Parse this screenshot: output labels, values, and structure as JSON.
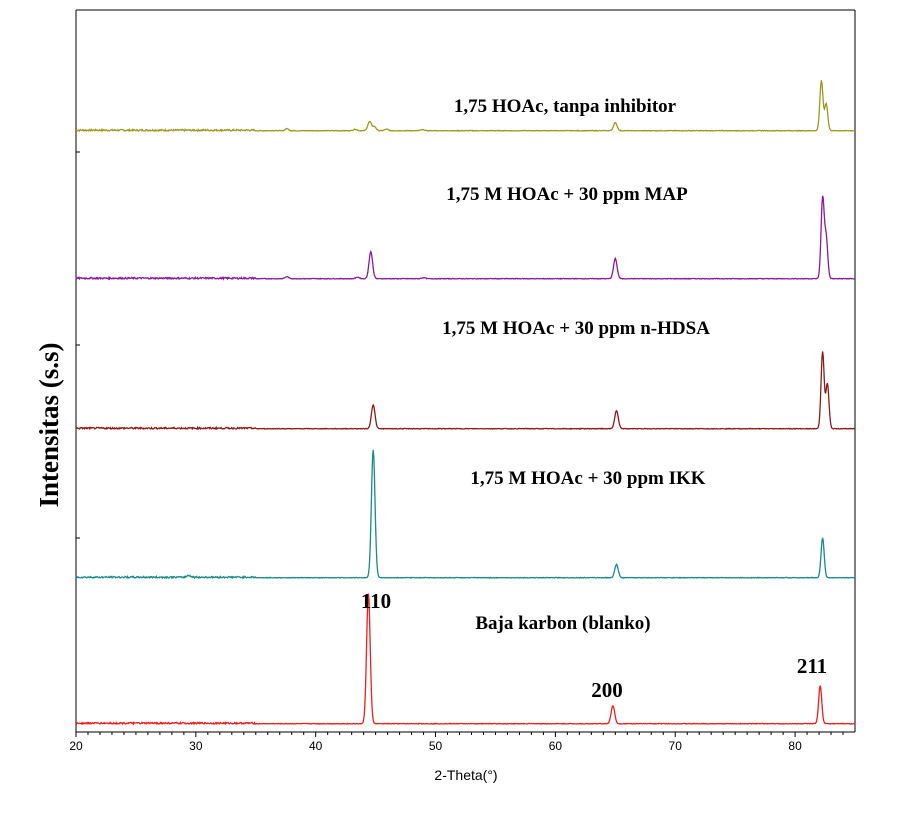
{
  "chart_data": {
    "type": "line",
    "xlabel": "2-Theta(°)",
    "ylabel": "Intensitas (s.s)",
    "xlim": [
      20,
      85
    ],
    "x_ticks": [
      20,
      30,
      40,
      50,
      60,
      70,
      80
    ],
    "x_tick_labels": [
      "20",
      "30",
      "40",
      "50",
      "60",
      "70",
      "80"
    ],
    "grid": false,
    "legend": "none",
    "series": [
      {
        "name": "1,75 HOAc, tanpa inhibitor",
        "color": "#9a9a1e",
        "peaks": [
          [
            37.6,
            2
          ],
          [
            43.3,
            1.5
          ],
          [
            44.5,
            9
          ],
          [
            44.9,
            4
          ],
          [
            45.9,
            1.5
          ],
          [
            48.9,
            1
          ],
          [
            65.0,
            8
          ],
          [
            82.2,
            50
          ],
          [
            82.6,
            27
          ]
        ]
      },
      {
        "name": "1,75 M HOAc  + 30 ppm MAP",
        "color": "#8a1a9e",
        "peaks": [
          [
            37.6,
            2
          ],
          [
            43.5,
            1.5
          ],
          [
            44.6,
            27
          ],
          [
            49.0,
            1
          ],
          [
            65.0,
            20
          ],
          [
            82.3,
            80
          ],
          [
            82.6,
            40
          ]
        ]
      },
      {
        "name": "1,75 M HOAc  + 30 ppm n-HDSA",
        "color": "#8b1a1a",
        "peaks": [
          [
            44.8,
            24
          ],
          [
            65.1,
            18
          ],
          [
            82.3,
            77
          ],
          [
            82.7,
            45
          ]
        ]
      },
      {
        "name": "1,75 M HOAc  +  30 ppm IKK",
        "color": "#1a8a8a",
        "peaks": [
          [
            29.4,
            2
          ],
          [
            44.8,
            128
          ],
          [
            65.1,
            13
          ],
          [
            82.3,
            40
          ]
        ]
      },
      {
        "name": "Baja karbon (blanko)",
        "color": "#e82020",
        "peaks": [
          [
            44.4,
            130
          ],
          [
            64.8,
            18
          ],
          [
            82.1,
            38
          ]
        ]
      }
    ],
    "annotations": [
      {
        "text": "110",
        "x": 44.4
      },
      {
        "text": "200",
        "x": 64.8
      },
      {
        "text": "211",
        "x": 82.1
      }
    ]
  }
}
